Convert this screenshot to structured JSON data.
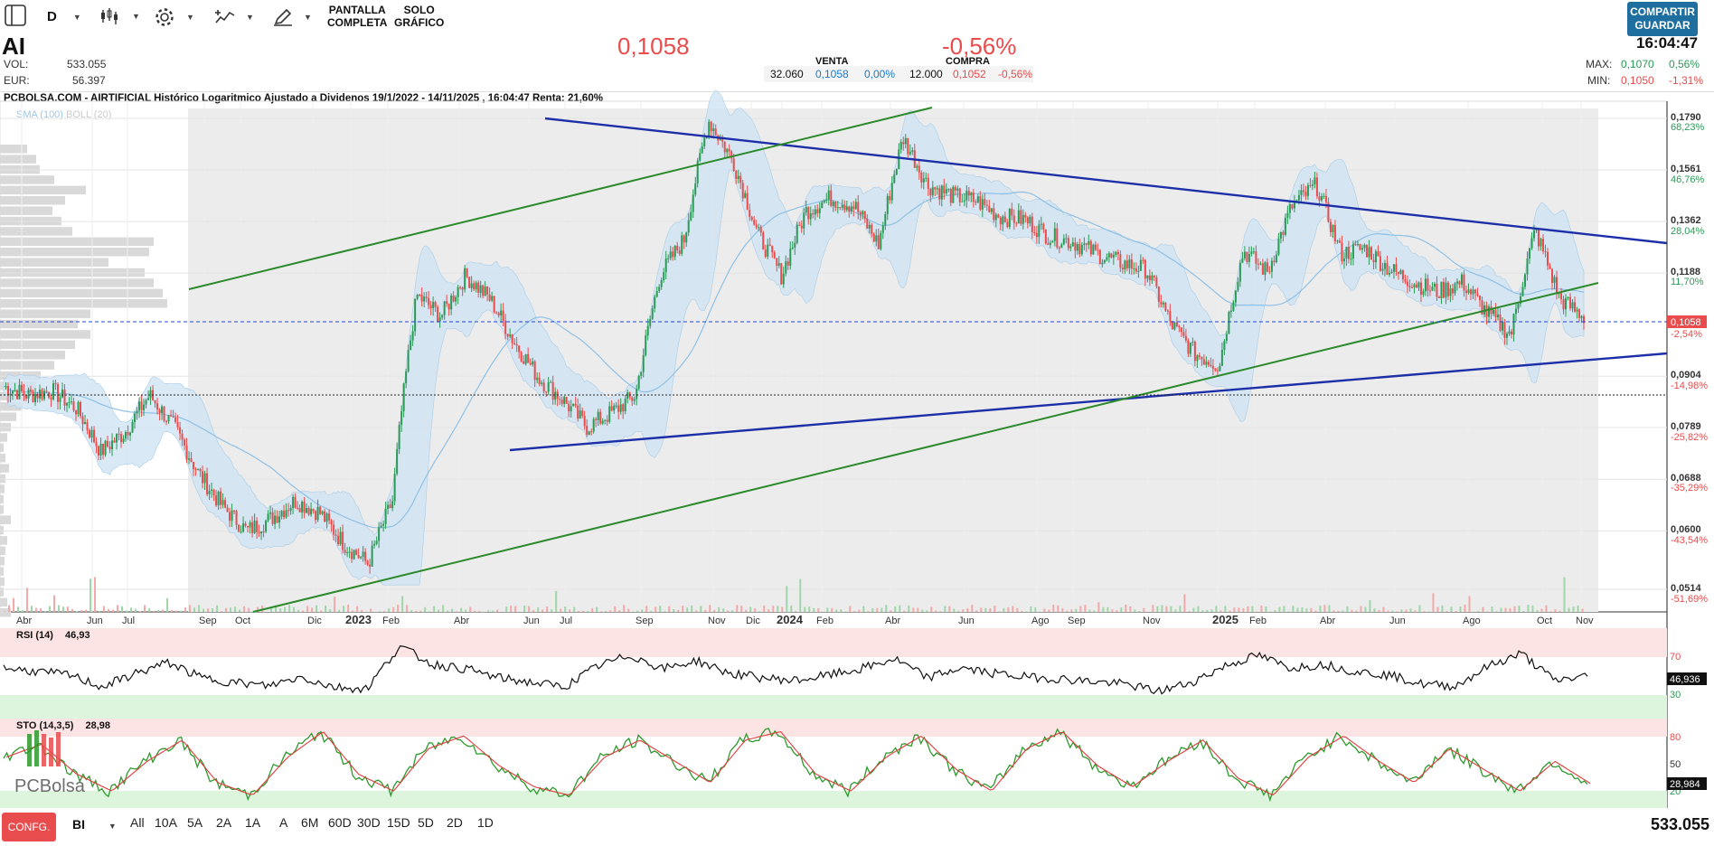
{
  "toolbar": {
    "interval": "D",
    "fullscreen_line1": "PANTALLA",
    "fullscreen_line2": "COMPLETA",
    "chartonly_line1": "SOLO",
    "chartonly_line2": "GRÁFICO",
    "share_line1": "COMPARTIR",
    "share_line2": "GUARDAR"
  },
  "quote": {
    "ticker": "AI",
    "vol_label": "VOL:",
    "vol_value": "533.055",
    "eur_label": "EUR:",
    "eur_value": "56.397",
    "last_price": "0,1058",
    "change_pct": "-0,56%",
    "time": "16:04:47",
    "sell_label": "VENTA",
    "buy_label": "COMPRA",
    "sell_qty": "32.060",
    "sell_price": "0,1058",
    "sell_pct": "0,00%",
    "buy_qty": "12.000",
    "buy_price": "0,1052",
    "buy_pct": "-0,56%",
    "max_label": "MAX:",
    "max_value": "0,1070",
    "max_pct": "0,56%",
    "min_label": "MIN:",
    "min_value": "0,1050",
    "min_pct": "-1,31%"
  },
  "chart": {
    "title": "PCBOLSA.COM - AIRTIFICIAL Histórico Logaritmico Ajustado a Dividenos 19/1/2022 - 14/11/2025 , 16:04:47 Renta: 21,60%",
    "legend_sma": "SMA (100)",
    "legend_boll": "BOLL (20)",
    "rsi_label": "RSI (14)",
    "rsi_value": "46,93",
    "rsi_axis_value": "46,936",
    "sto_label": "STO (14,3,5)",
    "sto_value": "28,98",
    "sto_axis_value": "28,984",
    "current_price_tag": "0,1058",
    "watermark": "PCBolsa",
    "colors": {
      "price_up": "#2c9a57",
      "price_down": "#e84c4c",
      "trend_blue": "#1d2fa8",
      "trend_green": "#2a8a2a",
      "band_fill": "#d4e6f5",
      "sma_line": "#8ec0e6"
    }
  },
  "chart_data": {
    "type": "line",
    "title": "PCBOLSA.COM - AIRTIFICIAL Histórico Logaritmico Ajustado a Dividenos 19/1/2022 - 14/11/2025 , 16:04:47 Renta: 21,60%",
    "y_scale": "log",
    "y_ticks": [
      "0,1790",
      "0,1561",
      "0,1362",
      "0,1188",
      "0,0904",
      "0,0789",
      "0,0688",
      "0,0600",
      "0,0514"
    ],
    "y_pct_ticks": [
      "68,23%",
      "46,76%",
      "28,04%",
      "11,70%",
      "-2,54%",
      "-14,98%",
      "-25,82%",
      "-35,29%",
      "-43,54%",
      "-51,69%"
    ],
    "x_ticks": [
      "Abr",
      "Jun",
      "Jul",
      "Sep",
      "Oct",
      "Dic",
      "2023",
      "Feb",
      "Abr",
      "Jun",
      "Jul",
      "Sep",
      "Nov",
      "Dic",
      "2024",
      "Feb",
      "Abr",
      "Jun",
      "Ago",
      "Sep",
      "Nov",
      "2025",
      "Feb",
      "Abr",
      "Jun",
      "Ago",
      "Oct",
      "Nov"
    ],
    "series": [
      {
        "name": "AI",
        "values": [
          0.088,
          0.086,
          0.087,
          0.083,
          0.074,
          0.078,
          0.086,
          0.079,
          0.07,
          0.064,
          0.06,
          0.062,
          0.065,
          0.063,
          0.058,
          0.055,
          0.065,
          0.112,
          0.106,
          0.118,
          0.111,
          0.099,
          0.09,
          0.085,
          0.079,
          0.082,
          0.086,
          0.118,
          0.13,
          0.178,
          0.16,
          0.132,
          0.118,
          0.14,
          0.145,
          0.142,
          0.128,
          0.17,
          0.15,
          0.146,
          0.144,
          0.138,
          0.137,
          0.131,
          0.129,
          0.125,
          0.122,
          0.12,
          0.104,
          0.096,
          0.093,
          0.126,
          0.119,
          0.142,
          0.15,
          0.125,
          0.127,
          0.12,
          0.116,
          0.113,
          0.116,
          0.107,
          0.101,
          0.133,
          0.111,
          0.1058
        ]
      }
    ],
    "rsi": [
      56,
      52,
      48,
      35,
      50,
      62,
      45,
      40,
      36,
      46,
      35,
      33,
      80,
      60,
      55,
      45,
      40,
      35,
      58,
      70,
      55,
      64,
      50,
      45,
      42,
      48,
      55,
      66,
      45,
      56,
      50,
      46,
      44,
      41,
      38,
      30,
      40,
      58,
      70,
      56,
      60,
      52,
      48,
      38,
      36,
      58,
      72,
      42,
      46.936
    ],
    "sto": [
      60,
      75,
      40,
      20,
      55,
      80,
      30,
      15,
      60,
      90,
      40,
      20,
      70,
      85,
      50,
      25,
      15,
      60,
      80,
      55,
      30,
      80,
      90,
      40,
      20,
      60,
      85,
      45,
      20,
      70,
      90,
      50,
      25,
      55,
      80,
      35,
      15,
      60,
      85,
      55,
      30,
      70,
      45,
      20,
      55,
      28.984
    ],
    "legend": [
      "SMA (100)",
      "BOLL (20)"
    ],
    "legend_position": "top-left",
    "grid": true
  },
  "bottombar": {
    "config": "CONFG.",
    "mode": "BI",
    "ranges": [
      "All",
      "10A",
      "5A",
      "2A",
      "1A",
      "A",
      "6M",
      "60D",
      "30D",
      "15D",
      "5D",
      "2D",
      "1D"
    ],
    "volume_total": "533.055"
  }
}
